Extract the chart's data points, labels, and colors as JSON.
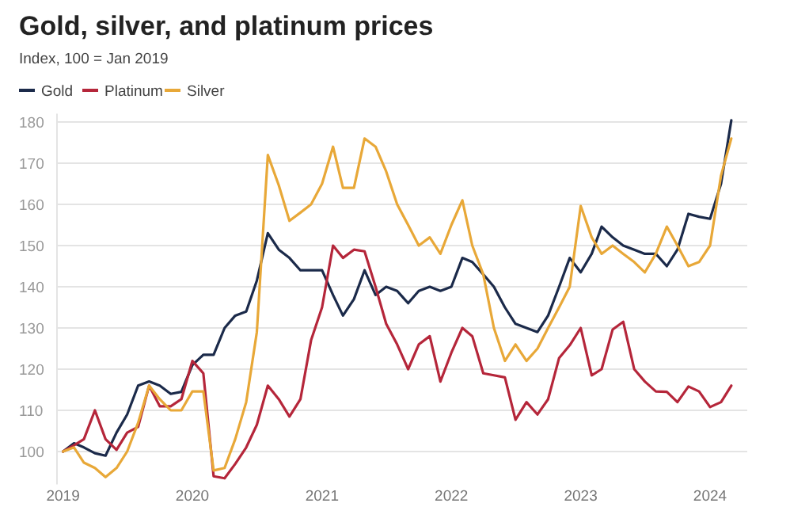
{
  "chart_data": {
    "type": "line",
    "title": "Gold, silver, and platinum prices",
    "subtitle": "Index, 100 = Jan 2019",
    "x": [
      "2019-01",
      "2019-02",
      "2019-03",
      "2019-04",
      "2019-05",
      "2019-06",
      "2019-07",
      "2019-08",
      "2019-09",
      "2019-10",
      "2019-11",
      "2019-12",
      "2020-01",
      "2020-02",
      "2020-03",
      "2020-04",
      "2020-05",
      "2020-06",
      "2020-07",
      "2020-08",
      "2020-09",
      "2020-10",
      "2020-11",
      "2020-12",
      "2021-01",
      "2021-02",
      "2021-03",
      "2021-04",
      "2021-05",
      "2021-06",
      "2021-07",
      "2021-08",
      "2021-09",
      "2021-10",
      "2021-11",
      "2021-12",
      "2022-01",
      "2022-02",
      "2022-03",
      "2022-04",
      "2022-05",
      "2022-06",
      "2022-07",
      "2022-08",
      "2022-09",
      "2022-10",
      "2022-11",
      "2022-12",
      "2023-01",
      "2023-02",
      "2023-03",
      "2023-04",
      "2023-05",
      "2023-06",
      "2023-07",
      "2023-08",
      "2023-09",
      "2023-10",
      "2023-11",
      "2023-12",
      "2024-01",
      "2024-02",
      "2024-03"
    ],
    "series": [
      {
        "name": "Gold",
        "color": "#1b2a4a",
        "values": [
          100,
          102,
          101,
          99.6,
          99,
          104.6,
          109,
          116,
          117,
          116,
          114,
          114.5,
          121,
          123.5,
          123.5,
          130,
          133,
          134,
          141.5,
          153,
          149,
          147,
          144,
          144,
          144,
          138,
          133,
          137,
          144,
          138,
          140,
          139,
          136,
          139,
          140,
          139,
          140,
          147,
          146,
          143,
          140,
          135,
          131,
          130,
          129,
          133,
          140,
          147,
          143.5,
          148,
          154.6,
          152,
          150,
          149,
          148,
          148,
          145,
          149,
          157.7,
          157,
          156.5,
          165,
          180.4
        ]
      },
      {
        "name": "Platinum",
        "color": "#b5263a",
        "values": [
          100,
          101.5,
          103,
          110,
          103,
          100.4,
          104.6,
          106,
          116,
          111,
          111,
          112.7,
          122,
          119,
          94,
          93.5,
          97,
          101,
          106.5,
          116,
          112.7,
          108.5,
          112.7,
          127,
          135,
          150,
          147,
          149,
          148.6,
          140,
          131,
          126,
          120,
          126,
          128,
          117,
          124,
          130,
          128,
          119,
          118.5,
          118,
          107.7,
          112,
          109,
          112.7,
          122.7,
          125.8,
          130,
          118.5,
          120,
          129.6,
          131.5,
          120,
          117,
          114.6,
          114.5,
          112,
          115.8,
          114.6,
          110.8,
          112,
          116
        ]
      },
      {
        "name": "Silver",
        "color": "#e8a838",
        "values": [
          100,
          101,
          97.3,
          96,
          93.8,
          96,
          100,
          107,
          116,
          112.7,
          110,
          110,
          114.6,
          114.6,
          95.4,
          96,
          103,
          112,
          129,
          172,
          164.6,
          156,
          158,
          160,
          165,
          174,
          164,
          164,
          176,
          174,
          168,
          160,
          155,
          150,
          152,
          148,
          155,
          161,
          150,
          143,
          130,
          122,
          126,
          122,
          125,
          130,
          135,
          140,
          159.6,
          152,
          148,
          150,
          148,
          146,
          143.5,
          148,
          154.6,
          150,
          145,
          146,
          150,
          167,
          176
        ]
      }
    ],
    "xlim": [
      "2018-12-15",
      "2024-04-15"
    ],
    "xticks": [
      "2019",
      "2020",
      "2021",
      "2022",
      "2023",
      "2024"
    ],
    "ylim": [
      92,
      182
    ],
    "yticks": [
      100,
      110,
      120,
      130,
      140,
      150,
      160,
      170,
      180
    ],
    "grid": "y",
    "legend": "top left",
    "line_style": "solid",
    "marker": "none"
  }
}
